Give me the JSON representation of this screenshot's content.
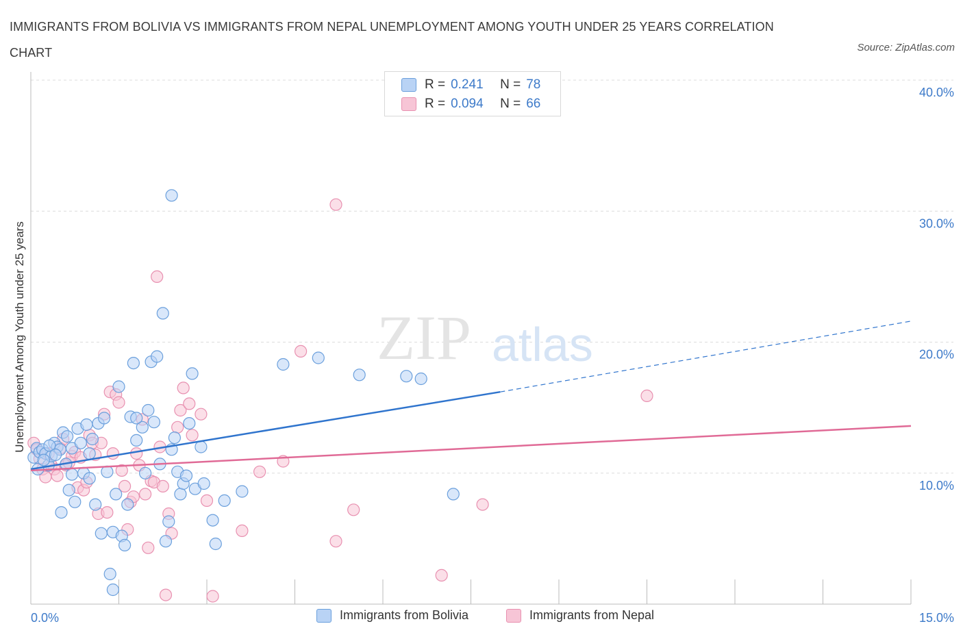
{
  "header": {
    "title": "IMMIGRANTS FROM BOLIVIA VS IMMIGRANTS FROM NEPAL UNEMPLOYMENT AMONG YOUTH UNDER 25 YEARS CORRELATION CHART",
    "source": "Source: ZipAtlas.com"
  },
  "legend_top": {
    "rows": [
      {
        "r_label": "R =",
        "r_value": "0.241",
        "n_label": "N =",
        "n_value": "78"
      },
      {
        "r_label": "R =",
        "r_value": "0.094",
        "n_label": "N =",
        "n_value": "66"
      }
    ]
  },
  "legend_bottom": {
    "items": [
      "Immigrants from Bolivia",
      "Immigrants from Nepal"
    ]
  },
  "watermark": {
    "zip": "ZIP",
    "atlas": "atlas"
  },
  "colors": {
    "bolivia_fill": "#b9d3f5",
    "bolivia_stroke": "#6a9fdc",
    "bolivia_line": "#2f74cd",
    "nepal_fill": "#f7c5d6",
    "nepal_stroke": "#e890b0",
    "nepal_line": "#e06a96",
    "tick_text": "#3d7ac9",
    "grid": "#dcdcdc"
  },
  "chart_data": {
    "type": "scatter",
    "title": "IMMIGRANTS FROM BOLIVIA VS IMMIGRANTS FROM NEPAL UNEMPLOYMENT AMONG YOUTH UNDER 25 YEARS CORRELATION CHART",
    "xlabel": "",
    "ylabel": "Unemployment Among Youth under 25 years",
    "xlim": [
      0,
      15
    ],
    "ylim": [
      0,
      40
    ],
    "x_tick_labels": [
      "0.0%",
      "15.0%"
    ],
    "y_ticks": [
      10,
      20,
      30,
      40
    ],
    "y_tick_labels": [
      "10.0%",
      "20.0%",
      "30.0%",
      "40.0%"
    ],
    "grid": true,
    "legend_position": "bottom",
    "series": [
      {
        "name": "Immigrants from Bolivia",
        "r": 0.241,
        "n": 78,
        "trend": {
          "x0": 0.0,
          "y0": 10.3,
          "x1": 8.0,
          "y1": 16.2,
          "dashed_to_x": 15.0,
          "dashed_to_y": 21.6
        },
        "points": [
          [
            0.05,
            11.2
          ],
          [
            0.1,
            11.9
          ],
          [
            0.15,
            11.6
          ],
          [
            0.2,
            11.8
          ],
          [
            0.25,
            11.5
          ],
          [
            0.3,
            10.6
          ],
          [
            0.35,
            11.3
          ],
          [
            0.4,
            12.3
          ],
          [
            0.45,
            12.0
          ],
          [
            0.5,
            11.8
          ],
          [
            0.55,
            13.1
          ],
          [
            0.6,
            10.7
          ],
          [
            0.65,
            8.7
          ],
          [
            0.7,
            11.9
          ],
          [
            0.75,
            7.8
          ],
          [
            0.8,
            13.4
          ],
          [
            0.85,
            12.3
          ],
          [
            0.9,
            10.0
          ],
          [
            0.95,
            13.7
          ],
          [
            1.0,
            9.6
          ],
          [
            1.0,
            11.5
          ],
          [
            1.05,
            12.6
          ],
          [
            1.1,
            7.6
          ],
          [
            1.15,
            13.8
          ],
          [
            1.2,
            5.4
          ],
          [
            1.25,
            14.2
          ],
          [
            1.3,
            10.1
          ],
          [
            1.35,
            2.3
          ],
          [
            1.4,
            1.1
          ],
          [
            1.4,
            5.5
          ],
          [
            1.45,
            8.4
          ],
          [
            1.5,
            16.6
          ],
          [
            1.55,
            5.2
          ],
          [
            1.6,
            4.5
          ],
          [
            1.65,
            7.6
          ],
          [
            1.7,
            14.3
          ],
          [
            1.75,
            18.4
          ],
          [
            1.8,
            12.5
          ],
          [
            1.9,
            13.5
          ],
          [
            1.95,
            10.0
          ],
          [
            2.0,
            14.8
          ],
          [
            2.05,
            18.5
          ],
          [
            2.1,
            13.9
          ],
          [
            2.15,
            18.9
          ],
          [
            2.2,
            10.7
          ],
          [
            2.25,
            22.2
          ],
          [
            2.3,
            4.8
          ],
          [
            2.35,
            6.3
          ],
          [
            2.4,
            11.8
          ],
          [
            2.4,
            31.2
          ],
          [
            2.45,
            12.7
          ],
          [
            2.5,
            10.1
          ],
          [
            2.55,
            8.4
          ],
          [
            2.6,
            9.2
          ],
          [
            2.65,
            9.8
          ],
          [
            2.7,
            13.8
          ],
          [
            2.75,
            17.6
          ],
          [
            2.8,
            8.8
          ],
          [
            2.9,
            12.0
          ],
          [
            2.95,
            9.2
          ],
          [
            3.1,
            6.4
          ],
          [
            3.15,
            4.6
          ],
          [
            3.3,
            7.9
          ],
          [
            3.6,
            8.6
          ],
          [
            4.3,
            18.3
          ],
          [
            4.9,
            18.8
          ],
          [
            5.6,
            17.5
          ],
          [
            6.4,
            17.4
          ],
          [
            6.65,
            17.2
          ],
          [
            7.2,
            8.4
          ],
          [
            0.12,
            10.3
          ],
          [
            0.22,
            11.0
          ],
          [
            0.32,
            12.1
          ],
          [
            0.42,
            11.4
          ],
          [
            0.52,
            7.0
          ],
          [
            0.62,
            12.8
          ],
          [
            1.8,
            14.2
          ],
          [
            0.7,
            9.9
          ]
        ]
      },
      {
        "name": "Immigrants from Nepal",
        "r": 0.094,
        "n": 66,
        "trend": {
          "x0": 0.0,
          "y0": 10.2,
          "x1": 15.0,
          "y1": 13.6
        },
        "points": [
          [
            0.05,
            12.3
          ],
          [
            0.1,
            11.8
          ],
          [
            0.15,
            11.1
          ],
          [
            0.2,
            10.3
          ],
          [
            0.25,
            9.7
          ],
          [
            0.3,
            11.5
          ],
          [
            0.35,
            10.6
          ],
          [
            0.4,
            10.3
          ],
          [
            0.45,
            9.8
          ],
          [
            0.5,
            11.9
          ],
          [
            0.55,
            12.6
          ],
          [
            0.6,
            10.6
          ],
          [
            0.65,
            10.8
          ],
          [
            0.7,
            11.3
          ],
          [
            0.75,
            11.6
          ],
          [
            0.8,
            8.9
          ],
          [
            0.85,
            11.2
          ],
          [
            0.9,
            8.7
          ],
          [
            0.95,
            9.3
          ],
          [
            1.0,
            12.9
          ],
          [
            1.05,
            12.3
          ],
          [
            1.1,
            11.4
          ],
          [
            1.15,
            6.9
          ],
          [
            1.2,
            12.3
          ],
          [
            1.25,
            14.5
          ],
          [
            1.3,
            7.0
          ],
          [
            1.35,
            16.2
          ],
          [
            1.4,
            11.5
          ],
          [
            1.45,
            16.0
          ],
          [
            1.5,
            15.4
          ],
          [
            1.55,
            10.2
          ],
          [
            1.6,
            9.0
          ],
          [
            1.65,
            5.7
          ],
          [
            1.7,
            7.8
          ],
          [
            1.75,
            8.2
          ],
          [
            1.8,
            11.5
          ],
          [
            1.85,
            10.6
          ],
          [
            1.9,
            14.1
          ],
          [
            1.95,
            8.4
          ],
          [
            2.0,
            4.3
          ],
          [
            2.05,
            9.4
          ],
          [
            2.1,
            9.3
          ],
          [
            2.15,
            25.0
          ],
          [
            2.2,
            12.0
          ],
          [
            2.25,
            9.0
          ],
          [
            2.3,
            0.7
          ],
          [
            2.35,
            6.9
          ],
          [
            2.4,
            5.4
          ],
          [
            2.5,
            13.5
          ],
          [
            2.55,
            14.8
          ],
          [
            2.6,
            16.5
          ],
          [
            2.7,
            15.3
          ],
          [
            2.75,
            12.9
          ],
          [
            2.9,
            14.5
          ],
          [
            3.0,
            7.9
          ],
          [
            3.1,
            0.6
          ],
          [
            3.6,
            5.6
          ],
          [
            3.9,
            10.1
          ],
          [
            4.3,
            10.9
          ],
          [
            4.6,
            19.3
          ],
          [
            5.2,
            4.8
          ],
          [
            5.5,
            7.2
          ],
          [
            7.0,
            2.2
          ],
          [
            7.7,
            7.6
          ],
          [
            10.5,
            15.9
          ],
          [
            5.2,
            30.5
          ]
        ]
      }
    ]
  }
}
